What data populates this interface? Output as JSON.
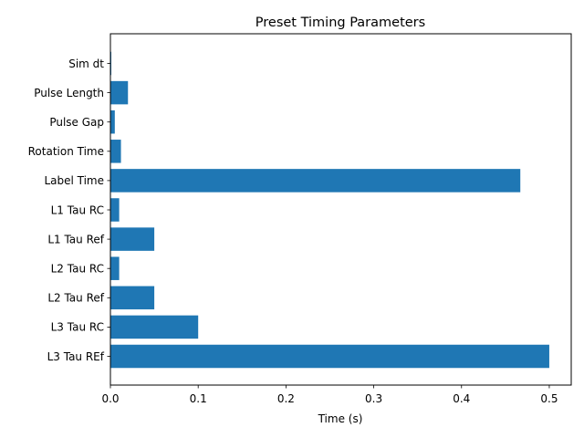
{
  "chart_data": {
    "type": "bar",
    "orientation": "horizontal",
    "title": "Preset Timing Parameters",
    "xlabel": "Time (s)",
    "ylabel": "",
    "xlim": [
      0,
      0.525
    ],
    "xticks": [
      0.0,
      0.1,
      0.2,
      0.3,
      0.4,
      0.5
    ],
    "xtick_labels": [
      "0.0",
      "0.1",
      "0.2",
      "0.3",
      "0.4",
      "0.5"
    ],
    "categories": [
      "Sim dt",
      "Pulse Length",
      "Pulse Gap",
      "Rotation Time",
      "Label Time",
      "L1 Tau RC",
      "L1 Tau Ref",
      "L2 Tau RC",
      "L2 Tau Ref",
      "L3 Tau RC",
      "L3 Tau REf"
    ],
    "values": [
      0.001,
      0.02,
      0.005,
      0.012,
      0.467,
      0.01,
      0.05,
      0.01,
      0.05,
      0.1,
      0.5
    ],
    "bar_color": "#1f77b4",
    "grid": false,
    "legend": "none"
  }
}
